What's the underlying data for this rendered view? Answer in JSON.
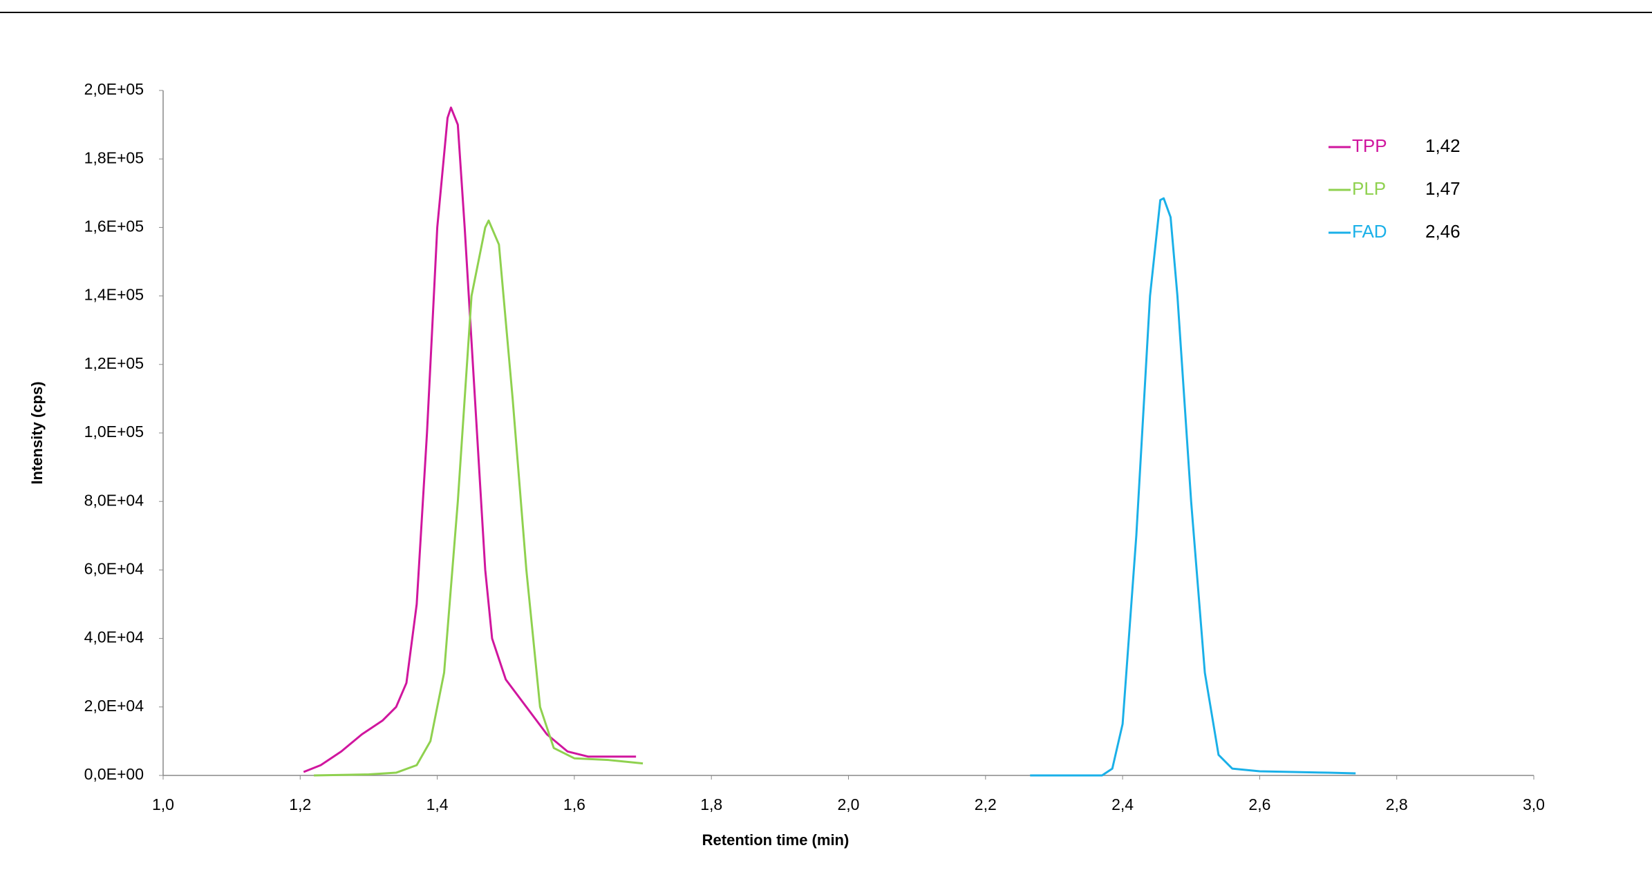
{
  "chart_data": {
    "type": "line",
    "x_label": "Retention time (min)",
    "y_label": "Intensity (cps)",
    "xlim": [
      1.0,
      3.0
    ],
    "xticks": [
      {
        "value": 1.0,
        "label": "1,0"
      },
      {
        "value": 1.2,
        "label": "1,2"
      },
      {
        "value": 1.4,
        "label": "1,4"
      },
      {
        "value": 1.6,
        "label": "1,6"
      },
      {
        "value": 1.8,
        "label": "1,8"
      },
      {
        "value": 2.0,
        "label": "2,0"
      },
      {
        "value": 2.2,
        "label": "2,2"
      },
      {
        "value": 2.4,
        "label": "2,4"
      },
      {
        "value": 2.6,
        "label": "2,6"
      },
      {
        "value": 2.8,
        "label": "2,8"
      },
      {
        "value": 3.0,
        "label": "3,0"
      }
    ],
    "ylim": [
      0,
      200000
    ],
    "yticks": [
      {
        "value": 0,
        "label": "0,0E+00"
      },
      {
        "value": 20000,
        "label": "2,0E+04"
      },
      {
        "value": 40000,
        "label": "4,0E+04"
      },
      {
        "value": 60000,
        "label": "6,0E+04"
      },
      {
        "value": 80000,
        "label": "8,0E+04"
      },
      {
        "value": 100000,
        "label": "1,0E+05"
      },
      {
        "value": 120000,
        "label": "1,2E+05"
      },
      {
        "value": 140000,
        "label": "1,4E+05"
      },
      {
        "value": 160000,
        "label": "1,6E+05"
      },
      {
        "value": 180000,
        "label": "1,8E+05"
      },
      {
        "value": 200000,
        "label": "2,0E+05"
      }
    ],
    "legend": "top-right",
    "series": [
      {
        "name": "TPP",
        "color": "#d0169e",
        "peak_label": "1,42",
        "x": [
          1.205,
          1.23,
          1.26,
          1.29,
          1.32,
          1.34,
          1.355,
          1.37,
          1.385,
          1.4,
          1.415,
          1.42,
          1.43,
          1.44,
          1.455,
          1.47,
          1.48,
          1.5,
          1.53,
          1.56,
          1.59,
          1.62,
          1.69
        ],
        "values": [
          1000,
          3000,
          7000,
          12000,
          16000,
          20000,
          27000,
          50000,
          100000,
          160000,
          192000,
          195000,
          190000,
          160000,
          110000,
          60000,
          40000,
          28000,
          20000,
          12000,
          7000,
          5500,
          5500
        ]
      },
      {
        "name": "PLP",
        "color": "#8fd14f",
        "peak_label": "1,47",
        "x": [
          1.22,
          1.3,
          1.34,
          1.37,
          1.39,
          1.41,
          1.43,
          1.45,
          1.47,
          1.475,
          1.49,
          1.51,
          1.53,
          1.55,
          1.57,
          1.6,
          1.65,
          1.7
        ],
        "values": [
          0,
          300,
          800,
          3000,
          10000,
          30000,
          80000,
          140000,
          160000,
          162000,
          155000,
          110000,
          60000,
          20000,
          8000,
          5000,
          4500,
          3500
        ]
      },
      {
        "name": "FAD",
        "color": "#1ab0e8",
        "peak_label": "2,46",
        "x": [
          2.265,
          2.37,
          2.385,
          2.4,
          2.42,
          2.44,
          2.455,
          2.46,
          2.47,
          2.48,
          2.5,
          2.52,
          2.54,
          2.56,
          2.6,
          2.7,
          2.74
        ],
        "values": [
          0,
          0,
          2000,
          15000,
          70000,
          140000,
          168000,
          168500,
          163000,
          140000,
          80000,
          30000,
          6000,
          2000,
          1200,
          800,
          600
        ]
      }
    ]
  }
}
